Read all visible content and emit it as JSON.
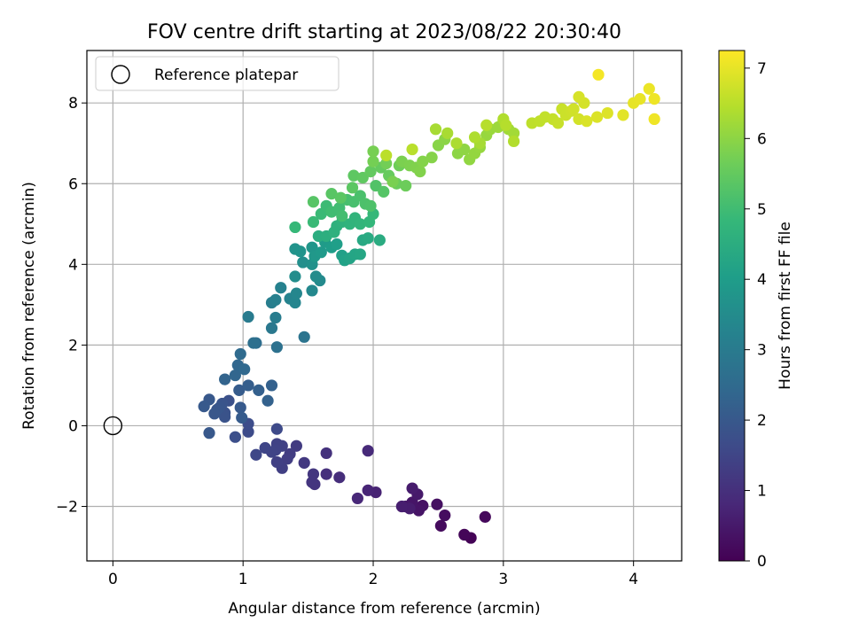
{
  "chart_data": {
    "type": "scatter",
    "title": "FOV centre drift starting at 2023/08/22 20:30:40",
    "xlabel": "Angular distance from reference (arcmin)",
    "ylabel": "Rotation from reference (arcmin)",
    "xlim": [
      -0.2,
      4.37
    ],
    "ylim": [
      -3.35,
      9.3
    ],
    "xticks": [
      0,
      1,
      2,
      3,
      4
    ],
    "yticks": [
      -2,
      0,
      2,
      4,
      6,
      8
    ],
    "xtick_labels": [
      "0",
      "1",
      "2",
      "3",
      "4"
    ],
    "ytick_labels": [
      "−2",
      "0",
      "2",
      "4",
      "6",
      "8"
    ],
    "grid": true,
    "colormap": "viridis",
    "colorbar": {
      "label": "Hours from first FF file",
      "range": [
        0,
        7.25
      ],
      "ticks": [
        0,
        1,
        2,
        3,
        4,
        5,
        6,
        7
      ],
      "tick_labels": [
        "0",
        "1",
        "2",
        "3",
        "4",
        "5",
        "6",
        "7"
      ]
    },
    "legend": {
      "position": "upper-left",
      "entries": [
        "Reference platepar"
      ]
    },
    "reference_point": {
      "x": 0,
      "y": 0,
      "label": "Reference platepar"
    },
    "series": [
      {
        "marker": "filled-circle",
        "points": [
          [
            2.75,
            -2.78,
            0.05
          ],
          [
            2.7,
            -2.7,
            0.1
          ],
          [
            2.86,
            -2.26,
            0.15
          ],
          [
            2.52,
            -2.48,
            0.2
          ],
          [
            2.55,
            -2.22,
            0.25
          ],
          [
            2.49,
            -1.95,
            0.3
          ],
          [
            2.38,
            -1.98,
            0.35
          ],
          [
            2.35,
            -2.1,
            0.4
          ],
          [
            2.3,
            -1.9,
            0.42
          ],
          [
            2.25,
            -2.0,
            0.45
          ],
          [
            2.34,
            -1.7,
            0.5
          ],
          [
            2.3,
            -1.55,
            0.55
          ],
          [
            2.28,
            -2.05,
            0.58
          ],
          [
            2.22,
            -2.0,
            0.6
          ],
          [
            2.02,
            -1.65,
            0.7
          ],
          [
            1.96,
            -1.6,
            0.75
          ],
          [
            1.88,
            -1.8,
            0.8
          ],
          [
            1.96,
            -0.62,
            0.85
          ],
          [
            1.74,
            -1.28,
            0.95
          ],
          [
            1.64,
            -1.2,
            1.0
          ],
          [
            1.64,
            -0.68,
            1.05
          ],
          [
            1.55,
            -1.45,
            1.1
          ],
          [
            1.53,
            -1.4,
            1.12
          ],
          [
            1.54,
            -1.2,
            1.15
          ],
          [
            1.47,
            -0.92,
            1.2
          ],
          [
            1.41,
            -0.5,
            1.25
          ],
          [
            1.36,
            -0.7,
            1.3
          ],
          [
            1.34,
            -0.82,
            1.32
          ],
          [
            1.3,
            -1.05,
            1.35
          ],
          [
            1.26,
            -0.9,
            1.38
          ],
          [
            1.3,
            -0.5,
            1.4
          ],
          [
            1.26,
            -0.45,
            1.42
          ],
          [
            1.25,
            -0.6,
            1.45
          ],
          [
            1.22,
            -0.65,
            1.48
          ],
          [
            1.17,
            -0.55,
            1.5
          ],
          [
            1.1,
            -0.72,
            1.55
          ],
          [
            1.26,
            -0.08,
            1.6
          ],
          [
            1.04,
            -0.15,
            1.65
          ],
          [
            1.04,
            0.05,
            1.7
          ],
          [
            0.94,
            -0.28,
            1.75
          ],
          [
            0.89,
            0.62,
            1.8
          ],
          [
            0.86,
            0.32,
            1.82
          ],
          [
            0.86,
            0.22,
            1.85
          ],
          [
            0.84,
            0.55,
            1.88
          ],
          [
            0.82,
            0.45,
            1.9
          ],
          [
            0.8,
            0.4,
            1.92
          ],
          [
            0.78,
            0.3,
            1.95
          ],
          [
            0.74,
            0.65,
            1.98
          ],
          [
            0.74,
            -0.18,
            2.0
          ],
          [
            0.7,
            0.48,
            2.02
          ],
          [
            0.98,
            0.45,
            2.05
          ],
          [
            0.99,
            0.2,
            2.08
          ],
          [
            0.97,
            0.88,
            2.1
          ],
          [
            1.04,
            1.0,
            2.15
          ],
          [
            1.12,
            0.88,
            2.2
          ],
          [
            1.22,
            1.0,
            2.22
          ],
          [
            1.19,
            0.62,
            2.25
          ],
          [
            0.86,
            1.15,
            2.3
          ],
          [
            0.94,
            1.25,
            2.35
          ],
          [
            0.96,
            1.5,
            2.4
          ],
          [
            1.01,
            1.4,
            2.45
          ],
          [
            0.98,
            1.78,
            2.5
          ],
          [
            1.1,
            2.05,
            2.6
          ],
          [
            1.08,
            2.05,
            2.65
          ],
          [
            1.26,
            1.95,
            2.7
          ],
          [
            1.47,
            2.2,
            2.8
          ],
          [
            1.22,
            2.42,
            2.9
          ],
          [
            1.04,
            2.7,
            3.0
          ],
          [
            1.25,
            2.68,
            3.05
          ],
          [
            1.22,
            3.05,
            3.1
          ],
          [
            1.25,
            3.12,
            3.15
          ],
          [
            1.29,
            3.42,
            3.2
          ],
          [
            1.36,
            3.15,
            3.25
          ],
          [
            1.4,
            3.05,
            3.3
          ],
          [
            1.41,
            3.28,
            3.35
          ],
          [
            1.53,
            3.35,
            3.4
          ],
          [
            1.59,
            3.6,
            3.45
          ],
          [
            1.56,
            3.7,
            3.5
          ],
          [
            1.4,
            3.7,
            3.55
          ],
          [
            1.46,
            4.05,
            3.6
          ],
          [
            1.53,
            4.0,
            3.65
          ],
          [
            1.4,
            4.38,
            3.7
          ],
          [
            1.44,
            4.32,
            3.75
          ],
          [
            1.53,
            4.42,
            3.8
          ],
          [
            1.55,
            4.2,
            3.85
          ],
          [
            1.6,
            4.3,
            3.9
          ],
          [
            1.63,
            4.55,
            3.95
          ],
          [
            1.68,
            4.42,
            4.0
          ],
          [
            1.72,
            4.5,
            4.05
          ],
          [
            1.76,
            4.22,
            4.1
          ],
          [
            1.78,
            4.1,
            4.15
          ],
          [
            1.82,
            4.15,
            4.2
          ],
          [
            1.86,
            4.25,
            4.25
          ],
          [
            1.9,
            4.25,
            4.3
          ],
          [
            1.92,
            4.6,
            4.35
          ],
          [
            1.96,
            4.65,
            4.4
          ],
          [
            2.05,
            4.6,
            4.45
          ],
          [
            1.58,
            4.7,
            4.5
          ],
          [
            1.64,
            4.7,
            4.55
          ],
          [
            1.7,
            4.8,
            4.6
          ],
          [
            1.72,
            4.95,
            4.62
          ],
          [
            1.76,
            5.05,
            4.65
          ],
          [
            1.82,
            5.0,
            4.7
          ],
          [
            1.86,
            5.15,
            4.72
          ],
          [
            1.9,
            5.0,
            4.75
          ],
          [
            1.97,
            5.05,
            4.8
          ],
          [
            2.0,
            5.25,
            4.82
          ],
          [
            1.4,
            4.92,
            4.85
          ],
          [
            1.54,
            5.05,
            4.9
          ],
          [
            1.6,
            5.25,
            4.92
          ],
          [
            1.64,
            5.45,
            4.95
          ],
          [
            1.68,
            5.3,
            5.0
          ],
          [
            1.74,
            5.4,
            5.02
          ],
          [
            1.76,
            5.2,
            5.05
          ],
          [
            1.8,
            5.6,
            5.1
          ],
          [
            1.85,
            5.55,
            5.12
          ],
          [
            1.9,
            5.7,
            5.15
          ],
          [
            1.94,
            5.5,
            5.18
          ],
          [
            1.98,
            5.45,
            5.2
          ],
          [
            2.02,
            5.95,
            5.25
          ],
          [
            2.08,
            5.8,
            5.3
          ],
          [
            1.54,
            5.55,
            5.32
          ],
          [
            1.68,
            5.75,
            5.35
          ],
          [
            1.75,
            5.65,
            5.38
          ],
          [
            1.84,
            5.9,
            5.4
          ],
          [
            1.85,
            6.2,
            5.42
          ],
          [
            1.92,
            6.15,
            5.45
          ],
          [
            1.98,
            6.3,
            5.5
          ],
          [
            2.06,
            6.4,
            5.52
          ],
          [
            2.12,
            6.2,
            5.55
          ],
          [
            2.18,
            6.0,
            5.6
          ],
          [
            2.25,
            5.95,
            5.62
          ],
          [
            2.2,
            6.45,
            5.65
          ],
          [
            2.1,
            6.5,
            5.7
          ],
          [
            2.0,
            6.55,
            5.72
          ],
          [
            2.0,
            6.8,
            5.75
          ],
          [
            2.15,
            6.05,
            5.78
          ],
          [
            2.22,
            6.55,
            5.8
          ],
          [
            2.28,
            6.45,
            5.82
          ],
          [
            2.33,
            6.4,
            5.85
          ],
          [
            2.36,
            6.3,
            5.88
          ],
          [
            2.38,
            6.55,
            5.9
          ],
          [
            2.45,
            6.65,
            5.92
          ],
          [
            2.5,
            6.95,
            5.95
          ],
          [
            2.55,
            7.1,
            5.98
          ],
          [
            2.65,
            6.75,
            6.0
          ],
          [
            2.7,
            6.85,
            6.02
          ],
          [
            2.74,
            6.6,
            6.05
          ],
          [
            2.78,
            6.75,
            6.08
          ],
          [
            2.82,
            6.9,
            6.1
          ],
          [
            2.87,
            7.2,
            6.12
          ],
          [
            2.9,
            7.35,
            6.15
          ],
          [
            2.96,
            7.4,
            6.18
          ],
          [
            3.0,
            7.55,
            6.2
          ],
          [
            3.04,
            7.35,
            6.22
          ],
          [
            3.08,
            7.25,
            6.25
          ],
          [
            2.82,
            7.0,
            6.28
          ],
          [
            2.48,
            7.35,
            6.3
          ],
          [
            2.57,
            7.25,
            6.32
          ],
          [
            2.64,
            7.0,
            6.35
          ],
          [
            2.78,
            7.15,
            6.38
          ],
          [
            3.0,
            7.6,
            6.4
          ],
          [
            3.08,
            7.05,
            6.42
          ],
          [
            3.02,
            7.45,
            6.45
          ],
          [
            2.87,
            7.45,
            6.48
          ],
          [
            2.3,
            6.85,
            6.5
          ],
          [
            2.1,
            6.7,
            6.52
          ],
          [
            3.22,
            7.5,
            6.55
          ],
          [
            3.28,
            7.55,
            6.58
          ],
          [
            3.32,
            7.65,
            6.6
          ],
          [
            3.38,
            7.6,
            6.62
          ],
          [
            3.42,
            7.5,
            6.65
          ],
          [
            3.45,
            7.85,
            6.68
          ],
          [
            3.48,
            7.7,
            6.7
          ],
          [
            3.52,
            7.8,
            6.72
          ],
          [
            3.54,
            7.85,
            6.75
          ],
          [
            3.58,
            7.6,
            6.78
          ],
          [
            3.62,
            8.0,
            6.8
          ],
          [
            3.58,
            8.15,
            6.82
          ],
          [
            3.64,
            7.55,
            6.85
          ],
          [
            3.72,
            7.65,
            6.88
          ],
          [
            3.8,
            7.75,
            6.9
          ],
          [
            3.92,
            7.7,
            6.95
          ],
          [
            4.0,
            8.0,
            7.0
          ],
          [
            4.05,
            8.1,
            7.02
          ],
          [
            4.12,
            8.35,
            7.05
          ],
          [
            4.16,
            8.1,
            7.08
          ],
          [
            4.16,
            7.6,
            7.1
          ],
          [
            3.73,
            8.7,
            7.15
          ]
        ]
      }
    ]
  }
}
